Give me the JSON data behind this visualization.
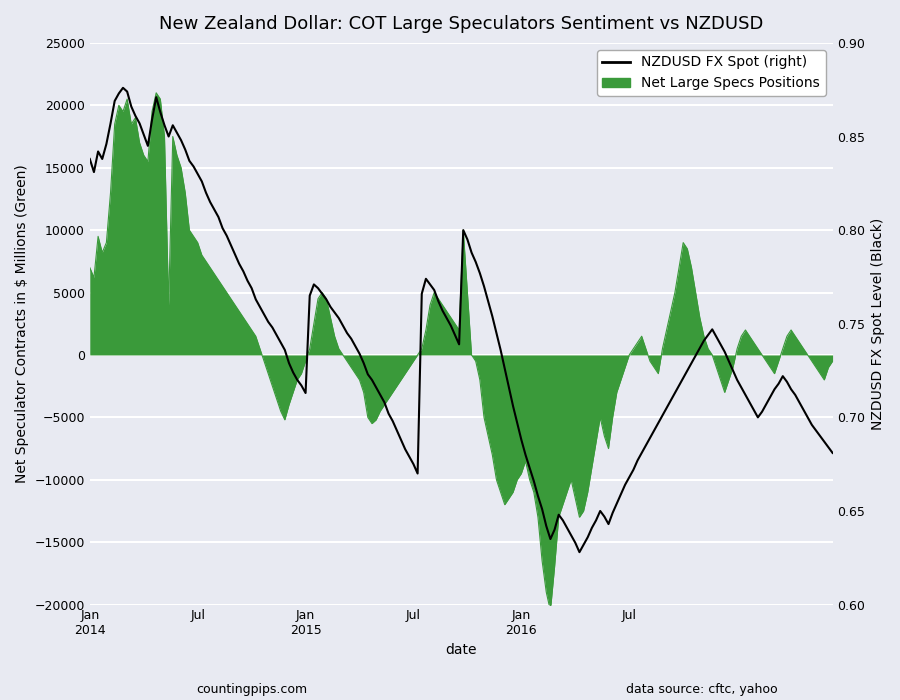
{
  "title": "New Zealand Dollar: COT Large Speculators Sentiment vs NZDUSD",
  "xlabel": "date",
  "ylabel_left": "Net Speculator Contracts in $ Millions (Green)",
  "ylabel_right": "NZDUSD FX Spot Level (Black)",
  "footer_left": "countingpips.com",
  "footer_right": "data source: cftc, yahoo",
  "legend_entries": [
    "NZDUSD FX Spot (right)",
    "Net Large Specs Positions"
  ],
  "background_color": "#e8eaf2",
  "ax_background_color": "#e8eaf2",
  "grid_color": "white",
  "fill_color": "#3a9a3a",
  "line_color": "black",
  "ylim_left": [
    -20000,
    25000
  ],
  "ylim_right": [
    0.6,
    0.9
  ],
  "net_specs": [
    7000,
    6200,
    9500,
    8200,
    9000,
    13000,
    18500,
    20000,
    19500,
    20500,
    18500,
    19000,
    17000,
    16000,
    15500,
    19500,
    21000,
    20500,
    17500,
    4000,
    17500,
    16000,
    15000,
    13000,
    10000,
    9500,
    9000,
    8000,
    7500,
    7000,
    6500,
    6000,
    5500,
    5000,
    4500,
    4000,
    3500,
    3000,
    2500,
    2000,
    1500,
    500,
    -500,
    -1500,
    -2500,
    -3500,
    -4500,
    -5200,
    -4000,
    -3000,
    -2000,
    -1500,
    -500,
    500,
    2500,
    4500,
    5000,
    4500,
    3000,
    1500,
    500,
    0,
    -500,
    -1000,
    -1500,
    -2000,
    -3000,
    -5000,
    -5500,
    -5200,
    -4500,
    -4000,
    -3500,
    -3000,
    -2500,
    -2000,
    -1500,
    -1000,
    -500,
    0,
    500,
    2000,
    4000,
    5000,
    4500,
    4000,
    3500,
    3000,
    2500,
    2000,
    10000,
    5000,
    0,
    -500,
    -2000,
    -5000,
    -6500,
    -8000,
    -10000,
    -11000,
    -12000,
    -11500,
    -11000,
    -10000,
    -9500,
    -8500,
    -10000,
    -11000,
    -13000,
    -16500,
    -19000,
    -20500,
    -17000,
    -13000,
    -12000,
    -11000,
    -10000,
    -11500,
    -13000,
    -12500,
    -11000,
    -9000,
    -7000,
    -5000,
    -6500,
    -7500,
    -5000,
    -3000,
    -2000,
    -1000,
    0,
    500,
    1000,
    1500,
    500,
    -500,
    -1000,
    -1500,
    500,
    2000,
    3500,
    5000,
    7000,
    9000,
    8500,
    7000,
    5000,
    3000,
    1500,
    500,
    0,
    -1000,
    -2000,
    -3000,
    -2000,
    -1000,
    500,
    1500,
    2000,
    1500,
    1000,
    500,
    0,
    -500,
    -1000,
    -1500,
    -500,
    500,
    1500,
    2000,
    1500,
    1000,
    500,
    0,
    -500,
    -1000,
    -1500,
    -2000,
    -1000,
    -500
  ],
  "nzdusd": [
    0.838,
    0.831,
    0.842,
    0.838,
    0.846,
    0.857,
    0.869,
    0.873,
    0.876,
    0.874,
    0.866,
    0.861,
    0.857,
    0.851,
    0.845,
    0.859,
    0.871,
    0.863,
    0.856,
    0.85,
    0.856,
    0.852,
    0.848,
    0.843,
    0.837,
    0.834,
    0.83,
    0.826,
    0.82,
    0.815,
    0.811,
    0.807,
    0.801,
    0.797,
    0.792,
    0.787,
    0.782,
    0.778,
    0.773,
    0.769,
    0.763,
    0.759,
    0.755,
    0.751,
    0.748,
    0.744,
    0.74,
    0.736,
    0.729,
    0.724,
    0.72,
    0.717,
    0.713,
    0.765,
    0.771,
    0.769,
    0.766,
    0.763,
    0.759,
    0.756,
    0.753,
    0.749,
    0.745,
    0.742,
    0.738,
    0.734,
    0.729,
    0.723,
    0.72,
    0.716,
    0.712,
    0.708,
    0.702,
    0.698,
    0.693,
    0.688,
    0.683,
    0.679,
    0.675,
    0.67,
    0.766,
    0.774,
    0.771,
    0.768,
    0.762,
    0.757,
    0.753,
    0.749,
    0.744,
    0.739,
    0.8,
    0.795,
    0.788,
    0.783,
    0.777,
    0.77,
    0.762,
    0.754,
    0.745,
    0.736,
    0.726,
    0.716,
    0.706,
    0.697,
    0.688,
    0.68,
    0.673,
    0.666,
    0.658,
    0.651,
    0.642,
    0.635,
    0.64,
    0.648,
    0.645,
    0.641,
    0.637,
    0.633,
    0.628,
    0.632,
    0.636,
    0.641,
    0.645,
    0.65,
    0.647,
    0.643,
    0.649,
    0.654,
    0.659,
    0.664,
    0.668,
    0.672,
    0.677,
    0.681,
    0.685,
    0.689,
    0.693,
    0.697,
    0.701,
    0.705,
    0.709,
    0.713,
    0.717,
    0.721,
    0.725,
    0.729,
    0.733,
    0.737,
    0.741,
    0.744,
    0.747,
    0.743,
    0.739,
    0.735,
    0.73,
    0.725,
    0.72,
    0.716,
    0.712,
    0.708,
    0.704,
    0.7,
    0.703,
    0.707,
    0.711,
    0.715,
    0.718,
    0.722,
    0.719,
    0.715,
    0.712,
    0.708,
    0.704,
    0.7,
    0.696,
    0.693,
    0.69,
    0.687,
    0.684,
    0.681
  ],
  "xtick_positions": [
    0,
    26,
    52,
    78,
    104,
    130,
    156
  ],
  "xtick_labels": [
    "Jan\n2014",
    "Jul",
    "Jan\n2015",
    "Jul",
    "Jan\n2016",
    "Jul",
    ""
  ]
}
